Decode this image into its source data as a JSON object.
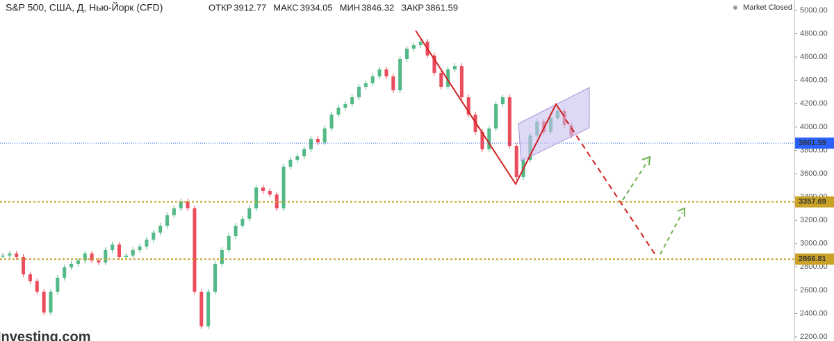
{
  "chart_data": {
    "type": "candle-line",
    "title": "S&P 500, США, Д, Нью-Йорк (CFD)",
    "stats": [
      {
        "label": "ОТКР",
        "value": 3912.77
      },
      {
        "label": "МАКС",
        "value": 3934.05
      },
      {
        "label": "МИН",
        "value": 3846.32
      },
      {
        "label": "ЗАКР",
        "value": 3861.59
      }
    ],
    "status": "Market Closed",
    "source": "Investing.com",
    "up_color": "#53b987",
    "down_color": "#eb4d5c",
    "values": [
      2897,
      2915,
      2885,
      2736,
      2677,
      2587,
      2409,
      2587,
      2707,
      2796,
      2826,
      2855,
      2915,
      2855,
      2838,
      2945,
      2992,
      2885,
      2897,
      2945,
      2975,
      3034,
      3094,
      3153,
      3243,
      3302,
      3362,
      3302,
      2587,
      2290,
      2587,
      2826,
      2945,
      3064,
      3153,
      3213,
      3302,
      3481,
      3451,
      3421,
      3302,
      3660,
      3719,
      3749,
      3809,
      3898,
      3868,
      3987,
      4106,
      4166,
      4196,
      4255,
      4345,
      4375,
      4434,
      4494,
      4434,
      4315,
      4583,
      4672,
      4702,
      4732,
      4613,
      4464,
      4345,
      4494,
      4523,
      4255,
      4106,
      3958,
      3809,
      3987,
      4196,
      4255,
      3838,
      3570,
      3719,
      3928,
      4047,
      3958,
      4077,
      4136,
      4017,
      3928
    ],
    "levels": [
      {
        "value": 3861.59,
        "color": "#2962ff"
      },
      {
        "value": 3357.69,
        "color": "#c9a227"
      },
      {
        "value": 2866.81,
        "color": "#c9a227"
      }
    ],
    "ylim": [
      2200,
      5000
    ],
    "yticks": [
      {
        "value": 2200,
        "label": "2200.00"
      },
      {
        "value": 2400,
        "label": "2400.00"
      },
      {
        "value": 2600,
        "label": "2600.00"
      },
      {
        "value": 2800,
        "label": "2800.00"
      },
      {
        "value": 3000,
        "label": "3000.00"
      },
      {
        "value": 3200,
        "label": "3200.00"
      },
      {
        "value": 3400,
        "label": "3400.00"
      },
      {
        "value": 3600,
        "label": "3600.00"
      },
      {
        "value": 3800,
        "label": "3800.00"
      },
      {
        "value": 4000,
        "label": "4000.00"
      },
      {
        "value": 4200,
        "label": "4200.00"
      },
      {
        "value": 4400,
        "label": "4400.00"
      },
      {
        "value": 4600,
        "label": "4600.00"
      },
      {
        "value": 4800,
        "label": "4800.00"
      },
      {
        "value": 5000,
        "label": "5000.00"
      }
    ]
  }
}
